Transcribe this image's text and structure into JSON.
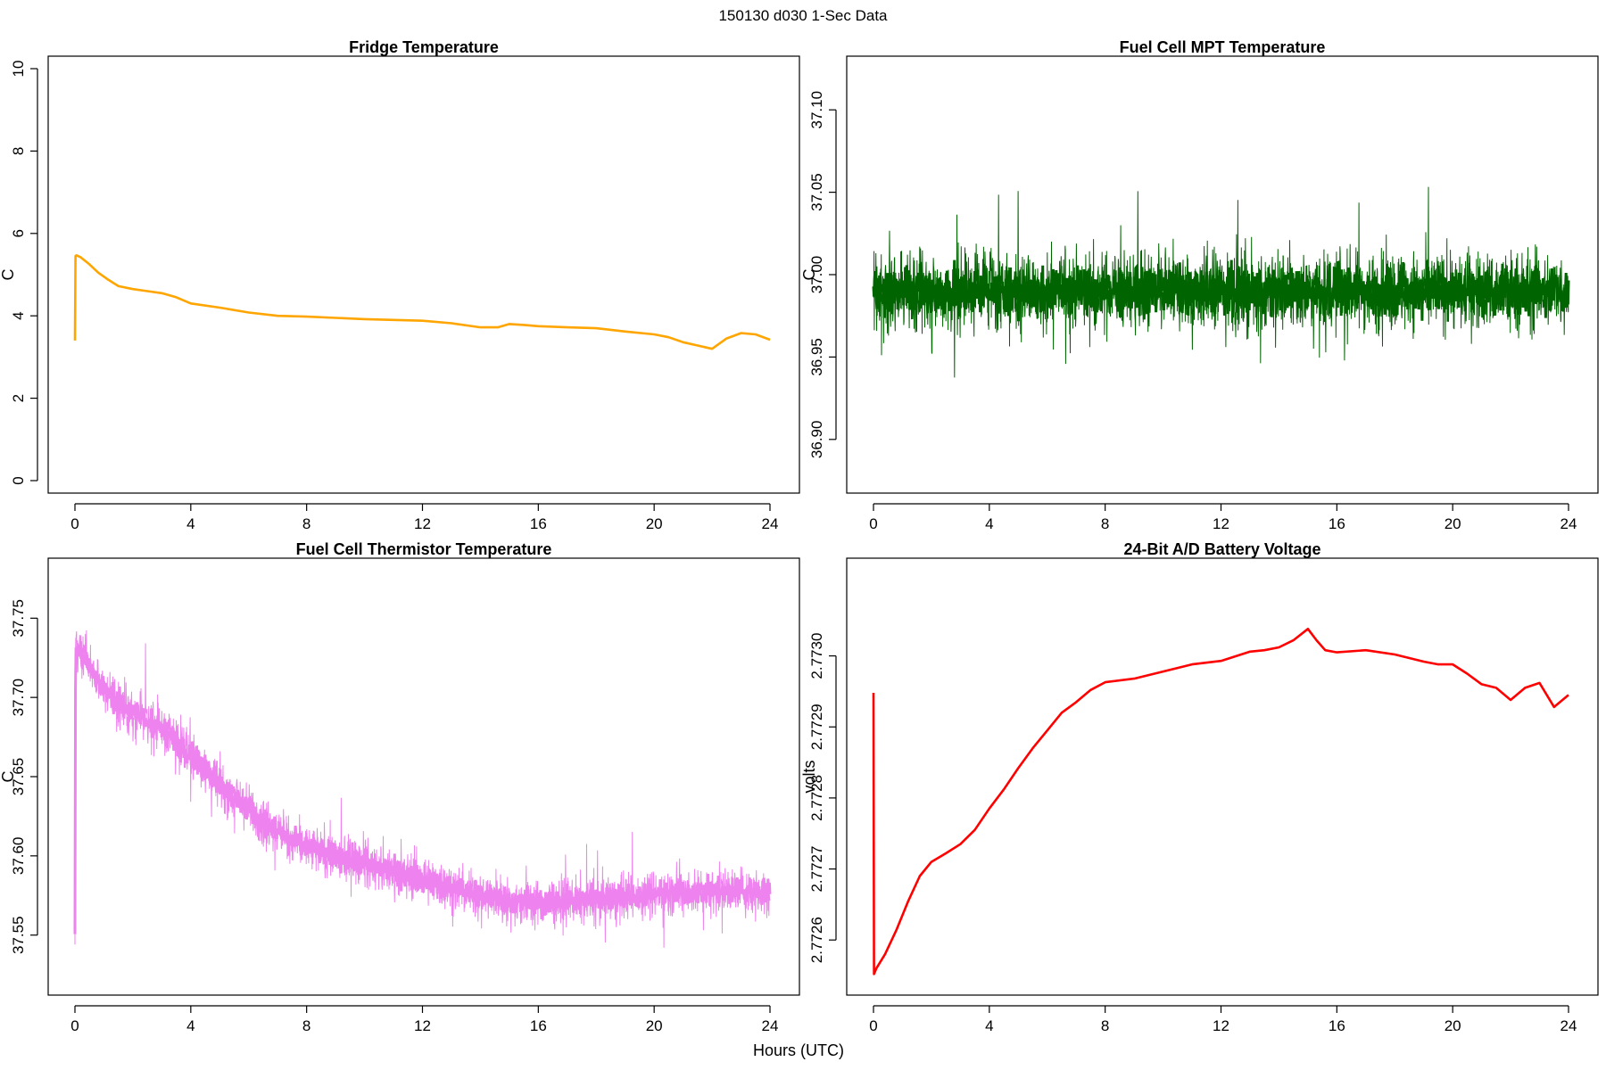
{
  "figure": {
    "super_title": "150130   d030   1-Sec Data",
    "x_axis_label": "Hours (UTC)"
  },
  "chart_data": [
    {
      "id": "fridge",
      "type": "line",
      "title": "Fridge Temperature",
      "xlabel": "",
      "ylabel": "C",
      "color": "#FFA500",
      "noise": 0,
      "xlim": [
        0,
        24
      ],
      "ylim": [
        0,
        10
      ],
      "xticks": [
        0,
        4,
        8,
        12,
        16,
        20,
        24
      ],
      "xtick_labels": [
        "0",
        "4",
        "8",
        "12",
        "16",
        "20",
        "24"
      ],
      "yticks": [
        0,
        2,
        4,
        6,
        8,
        10
      ],
      "ytick_labels": [
        "0",
        "2",
        "4",
        "6",
        "8",
        "10"
      ],
      "x": [
        0,
        0.02,
        0.05,
        0.2,
        0.5,
        0.8,
        1.1,
        1.5,
        2.0,
        2.5,
        3.0,
        3.5,
        4.0,
        5.0,
        6.0,
        7.0,
        8.0,
        9.0,
        10.0,
        11.0,
        12.0,
        13.0,
        14.0,
        14.6,
        15.0,
        15.5,
        16.0,
        17.0,
        18.0,
        19.0,
        20.0,
        20.5,
        21.0,
        21.5,
        22.0,
        22.5,
        23.0,
        23.5,
        24.0
      ],
      "values": [
        3.4,
        5.45,
        5.47,
        5.42,
        5.25,
        5.05,
        4.9,
        4.72,
        4.65,
        4.6,
        4.55,
        4.45,
        4.3,
        4.2,
        4.08,
        4.0,
        3.98,
        3.95,
        3.92,
        3.9,
        3.88,
        3.82,
        3.72,
        3.72,
        3.8,
        3.78,
        3.75,
        3.72,
        3.7,
        3.62,
        3.55,
        3.48,
        3.36,
        3.28,
        3.2,
        3.45,
        3.58,
        3.55,
        3.42
      ]
    },
    {
      "id": "mpt",
      "type": "line",
      "title": "Fuel Cell MPT Temperature",
      "xlabel": "",
      "ylabel": "C",
      "color": "#006400",
      "noise": 0.045,
      "xlim": [
        0,
        24
      ],
      "ylim": [
        36.875,
        37.125
      ],
      "xticks": [
        0,
        4,
        8,
        12,
        16,
        20,
        24
      ],
      "xtick_labels": [
        "0",
        "4",
        "8",
        "12",
        "16",
        "20",
        "24"
      ],
      "yticks": [
        36.9,
        36.95,
        37.0,
        37.05,
        37.1
      ],
      "ytick_labels": [
        "36.90",
        "36.95",
        "37.00",
        "37.05",
        "37.10"
      ],
      "x": [
        0,
        24
      ],
      "values": [
        36.99,
        36.99
      ]
    },
    {
      "id": "thermistor",
      "type": "line",
      "title": "Fuel Cell Thermistor Temperature",
      "xlabel": "",
      "ylabel": "C",
      "color": "#EE82EE",
      "noise": 0.028,
      "xlim": [
        0,
        24
      ],
      "ylim": [
        37.52,
        37.78
      ],
      "xticks": [
        0,
        4,
        8,
        12,
        16,
        20,
        24
      ],
      "xtick_labels": [
        "0",
        "4",
        "8",
        "12",
        "16",
        "20",
        "24"
      ],
      "yticks": [
        37.55,
        37.6,
        37.65,
        37.7,
        37.75
      ],
      "ytick_labels": [
        "37.55",
        "37.60",
        "37.65",
        "37.70",
        "37.75"
      ],
      "x": [
        0,
        0.02,
        0.05,
        0.5,
        1,
        2,
        3,
        4,
        5,
        6,
        7,
        8,
        9,
        10,
        11,
        12,
        13,
        14,
        15,
        16,
        17,
        18,
        19,
        20,
        21,
        22,
        23,
        24
      ],
      "values": [
        37.55,
        37.73,
        37.73,
        37.72,
        37.705,
        37.69,
        37.68,
        37.665,
        37.645,
        37.63,
        37.615,
        37.605,
        37.6,
        37.595,
        37.59,
        37.585,
        37.58,
        37.575,
        37.572,
        37.57,
        37.572,
        37.572,
        37.574,
        37.576,
        37.577,
        37.578,
        37.578,
        37.578
      ]
    },
    {
      "id": "battery",
      "type": "line",
      "title": "24-Bit A/D Battery Voltage",
      "xlabel": "",
      "ylabel": "volts",
      "color": "#FF0000",
      "noise": 0,
      "xlim": [
        0,
        24
      ],
      "ylim": [
        2.77254,
        2.77312
      ],
      "xticks": [
        0,
        4,
        8,
        12,
        16,
        20,
        24
      ],
      "xtick_labels": [
        "0",
        "4",
        "8",
        "12",
        "16",
        "20",
        "24"
      ],
      "yticks": [
        2.7726,
        2.7727,
        2.7728,
        2.7729,
        2.773
      ],
      "ytick_labels": [
        "2.7726",
        "2.7727",
        "2.7728",
        "2.7729",
        "2.7730"
      ],
      "x": [
        0,
        0.02,
        0.1,
        0.4,
        0.8,
        1.2,
        1.6,
        2.0,
        2.5,
        3.0,
        3.5,
        4.0,
        4.5,
        5.0,
        5.5,
        6.0,
        6.5,
        7.0,
        7.5,
        8.0,
        9.0,
        10.0,
        11.0,
        12.0,
        13.0,
        13.5,
        14.0,
        14.5,
        15.0,
        15.3,
        15.6,
        16.0,
        17.0,
        18.0,
        19.0,
        19.5,
        20.0,
        20.5,
        21.0,
        21.5,
        22.0,
        22.5,
        23.0,
        23.5,
        24.0
      ],
      "values": [
        2.772948,
        2.772552,
        2.77256,
        2.77258,
        2.772615,
        2.772655,
        2.77269,
        2.77271,
        2.772722,
        2.772735,
        2.772755,
        2.772785,
        2.772812,
        2.772842,
        2.77287,
        2.772895,
        2.77292,
        2.772935,
        2.772952,
        2.772963,
        2.772968,
        2.772978,
        2.772988,
        2.772993,
        2.773006,
        2.773008,
        2.773012,
        2.773022,
        2.773038,
        2.773022,
        2.773008,
        2.773005,
        2.773008,
        2.773002,
        2.772992,
        2.772988,
        2.772988,
        2.772975,
        2.77296,
        2.772955,
        2.772938,
        2.772955,
        2.772962,
        2.772928,
        2.772945
      ]
    }
  ]
}
